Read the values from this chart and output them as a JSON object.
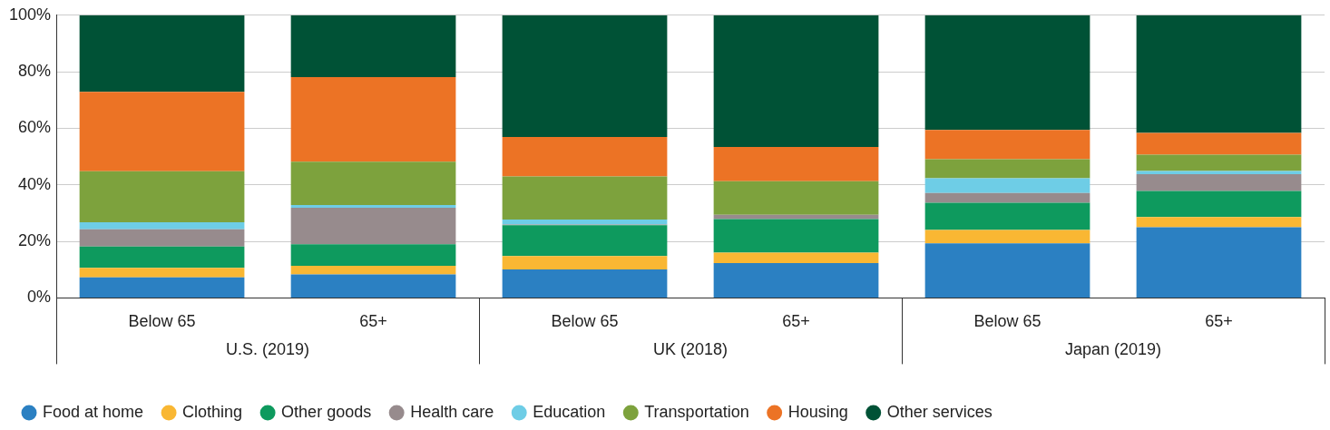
{
  "chart_data": {
    "type": "bar",
    "stacked": true,
    "categories": [
      "Below 65",
      "65+",
      "Below 65",
      "65+",
      "Below 65",
      "65+"
    ],
    "annotations": [
      "U.S. (2019)",
      "UK (2018)",
      "Japan (2019)"
    ],
    "ylim": [
      0,
      100
    ],
    "yticks": [
      {
        "value": 0,
        "label": "0%"
      },
      {
        "value": 20,
        "label": "20%"
      },
      {
        "value": 40,
        "label": "40%"
      },
      {
        "value": 60,
        "label": "60%"
      },
      {
        "value": 80,
        "label": "80%"
      },
      {
        "value": 100,
        "label": "100%"
      }
    ],
    "grid": "y",
    "legend": "bottom",
    "series": [
      {
        "name": "Food at home",
        "color": "#2b80c2",
        "values": [
          7.3,
          8.3,
          10.1,
          12.3,
          19.3,
          25.0
        ]
      },
      {
        "name": "Clothing",
        "color": "#f9b733",
        "values": [
          3.3,
          3.1,
          4.7,
          3.7,
          4.7,
          3.6
        ]
      },
      {
        "name": "Other goods",
        "color": "#0e9a5e",
        "values": [
          7.6,
          7.6,
          10.9,
          11.9,
          9.7,
          9.2
        ]
      },
      {
        "name": "Health care",
        "color": "#978b8d",
        "values": [
          6.1,
          12.9,
          0.3,
          1.5,
          3.4,
          6.0
        ]
      },
      {
        "name": "Education",
        "color": "#6ecde6",
        "values": [
          2.5,
          1.0,
          1.7,
          0,
          5.2,
          1.1
        ]
      },
      {
        "name": "Transportation",
        "color": "#7da23d",
        "values": [
          18.0,
          15.3,
          15.3,
          11.9,
          6.8,
          5.8
        ]
      },
      {
        "name": "Housing",
        "color": "#ec7325",
        "values": [
          28.1,
          29.9,
          13.9,
          12.1,
          10.3,
          7.7
        ]
      },
      {
        "name": "Other services",
        "color": "#005236",
        "values": [
          27.1,
          21.9,
          43.1,
          46.6,
          40.6,
          41.6
        ]
      }
    ]
  }
}
